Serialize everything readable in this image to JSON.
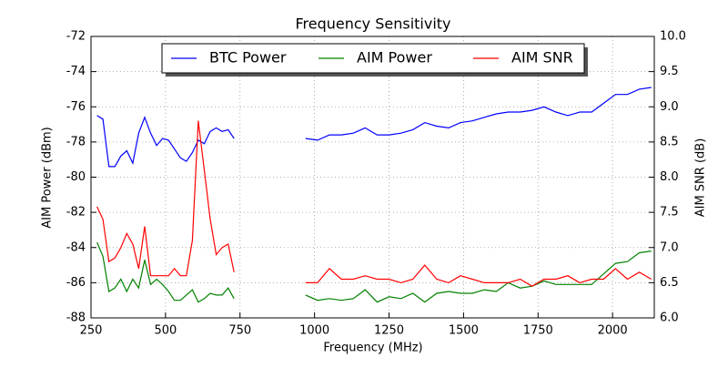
{
  "chart_data": {
    "type": "line",
    "title": "Frequency Sensitivity",
    "x_label": "Frequency (MHz)",
    "y_label": "AIM Power (dBm)",
    "y2_label": "AIM SNR (dB)",
    "x": [
      270,
      290,
      310,
      330,
      350,
      370,
      390,
      410,
      430,
      450,
      470,
      490,
      510,
      530,
      550,
      570,
      590,
      610,
      630,
      650,
      670,
      690,
      710,
      730,
      850,
      970,
      1010,
      1050,
      1090,
      1130,
      1170,
      1210,
      1250,
      1290,
      1330,
      1370,
      1410,
      1450,
      1490,
      1530,
      1570,
      1610,
      1650,
      1690,
      1730,
      1770,
      1810,
      1850,
      1890,
      1930,
      1970,
      2010,
      2050,
      2090,
      2130
    ],
    "series": [
      {
        "name": "BTC Power",
        "color": "#0000ff",
        "values": [
          -76.5,
          -76.7,
          -79.4,
          -79.4,
          -78.8,
          -78.5,
          -79.2,
          -77.5,
          -76.6,
          -77.5,
          -78.2,
          -77.8,
          -77.9,
          -78.4,
          -78.9,
          -79.1,
          -78.6,
          -77.9,
          -78.1,
          -77.4,
          -77.2,
          -77.4,
          -77.3,
          -77.8,
          null,
          -77.8,
          -77.9,
          -77.6,
          -77.6,
          -77.5,
          -77.2,
          -77.6,
          -77.6,
          -77.5,
          -77.3,
          -76.9,
          -77.1,
          -77.2,
          -76.9,
          -76.8,
          -76.6,
          -76.4,
          -76.3,
          -76.3,
          -76.2,
          -76.0,
          -76.3,
          -76.5,
          -76.3,
          -76.3,
          -75.8,
          -75.3,
          -75.3,
          -75.0,
          -74.9
        ]
      },
      {
        "name": "AIM Power",
        "color": "#008000",
        "values": [
          -83.7,
          -84.5,
          -86.5,
          -86.3,
          -85.8,
          -86.5,
          -85.8,
          -86.3,
          -84.7,
          -86.1,
          -85.8,
          -86.1,
          -86.5,
          -87.0,
          -87.0,
          -86.7,
          -86.4,
          -87.1,
          -86.9,
          -86.6,
          -86.7,
          -86.7,
          -86.3,
          -86.9,
          null,
          -86.7,
          -87.0,
          -86.9,
          -87.0,
          -86.9,
          -86.4,
          -87.1,
          -86.8,
          -86.9,
          -86.6,
          -87.1,
          -86.6,
          -86.5,
          -86.6,
          -86.6,
          -86.4,
          -86.5,
          -86.0,
          -86.3,
          -86.2,
          -85.9,
          -86.1,
          -86.1,
          -86.1,
          -86.1,
          -85.5,
          -84.9,
          -84.8,
          -84.3,
          -84.2
        ]
      },
      {
        "name": "AIM SNR",
        "color": "#ff0000",
        "axis": "y2",
        "values": [
          7.58,
          7.4,
          6.8,
          6.85,
          7.0,
          7.2,
          7.05,
          6.7,
          7.3,
          6.6,
          6.6,
          6.6,
          6.6,
          6.7,
          6.6,
          6.6,
          7.1,
          8.8,
          8.1,
          7.4,
          6.9,
          7.0,
          7.05,
          6.65,
          null,
          6.5,
          6.5,
          6.7,
          6.55,
          6.55,
          6.6,
          6.55,
          6.55,
          6.5,
          6.55,
          6.75,
          6.55,
          6.5,
          6.6,
          6.55,
          6.5,
          6.5,
          6.5,
          6.55,
          6.45,
          6.55,
          6.55,
          6.6,
          6.5,
          6.55,
          6.55,
          6.7,
          6.55,
          6.65,
          6.55
        ]
      }
    ],
    "xlim": [
      250,
      2140
    ],
    "xticks": [
      250,
      500,
      750,
      1000,
      1250,
      1500,
      1750,
      2000
    ],
    "ylim": [
      -88,
      -72
    ],
    "yticks": [
      -88,
      -86,
      -84,
      -82,
      -80,
      -78,
      -76,
      -74,
      -72
    ],
    "y2lim": [
      6,
      10
    ],
    "y2ticks": [
      {
        "value": 6,
        "label": "6.0"
      },
      6.5,
      {
        "value": 7,
        "label": "7.0"
      },
      7.5,
      {
        "value": 8,
        "label": "8.0"
      },
      8.5,
      {
        "value": 9,
        "label": "9.0"
      },
      9.5,
      {
        "value": 10,
        "label": "10.0"
      }
    ],
    "grid": true,
    "legend": "upper center"
  }
}
